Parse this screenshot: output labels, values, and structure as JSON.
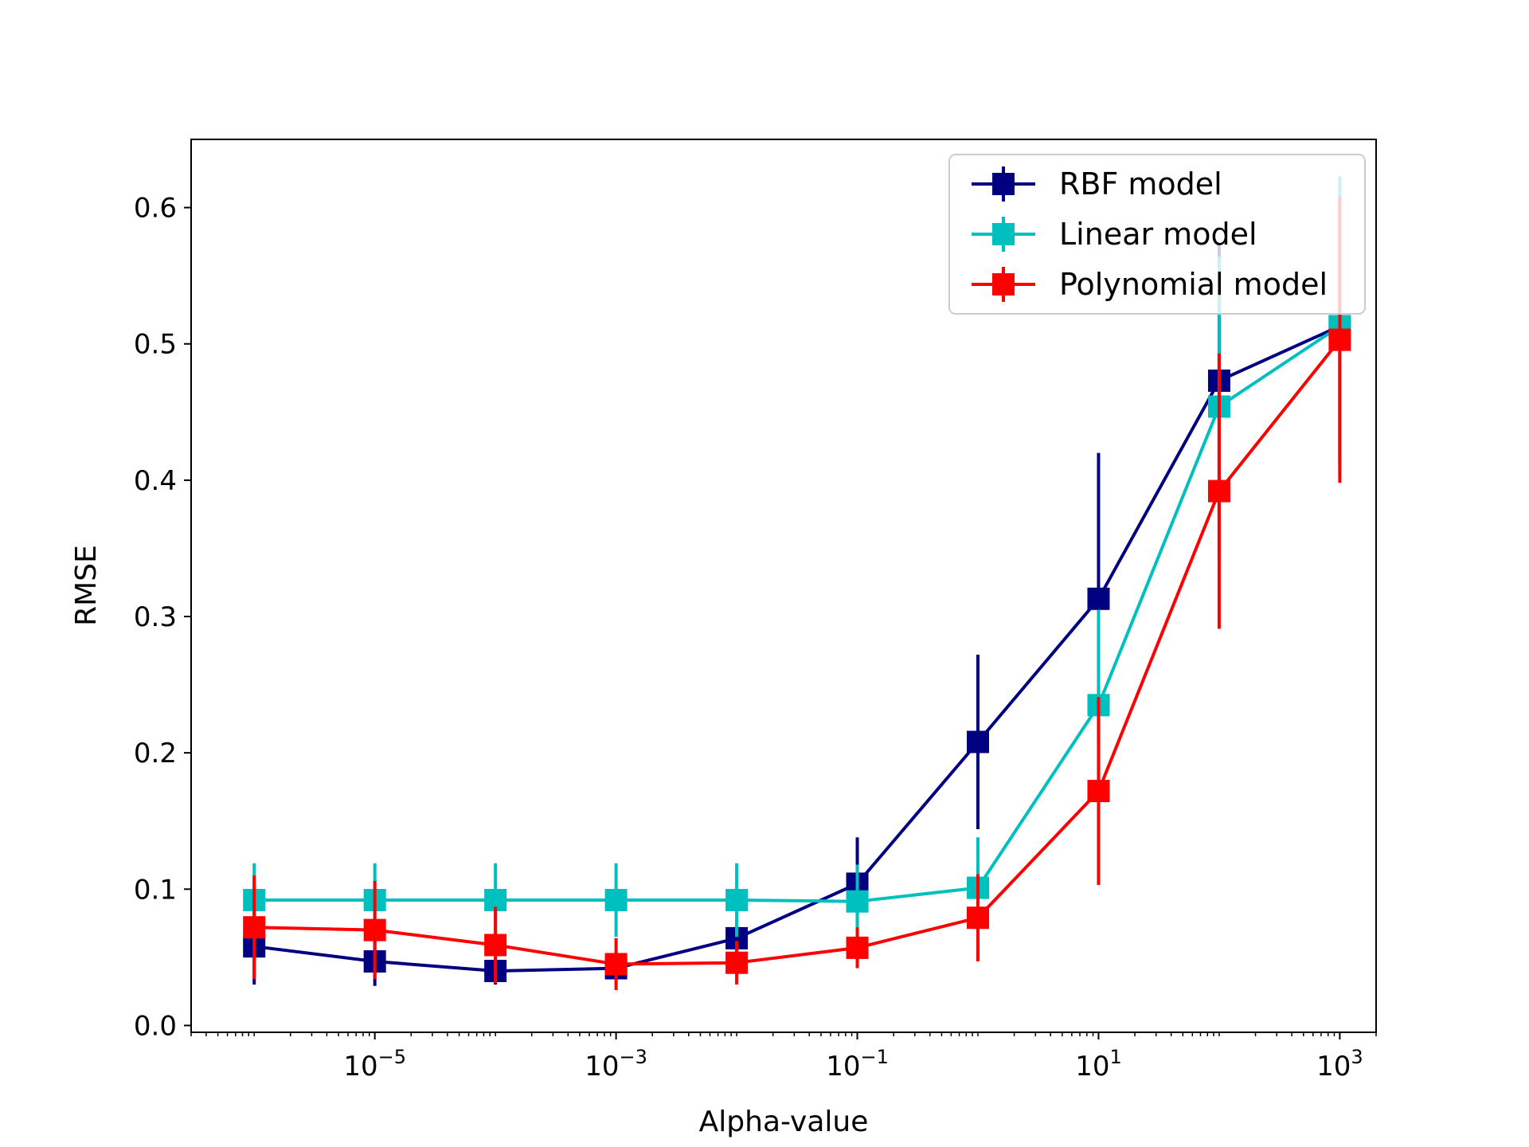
{
  "chart_data": {
    "type": "line",
    "title": "",
    "xlabel": "Alpha-value",
    "ylabel": "RMSE",
    "xscale": "log",
    "xlim": [
      3e-07,
      2000
    ],
    "ylim": [
      -0.005,
      0.65
    ],
    "grid": false,
    "legend_position": "top-right",
    "x": [
      1e-06,
      1e-05,
      0.0001,
      0.001,
      0.01,
      0.1,
      1,
      10,
      100,
      1000
    ],
    "x_tick_values": [
      1e-05,
      0.001,
      0.1,
      10,
      1000
    ],
    "x_ticks": [
      {
        "base": "10",
        "exp": "−5"
      },
      {
        "base": "10",
        "exp": "−3"
      },
      {
        "base": "10",
        "exp": "−1"
      },
      {
        "base": "10",
        "exp": "1"
      },
      {
        "base": "10",
        "exp": "3"
      }
    ],
    "y_tick_values": [
      0.0,
      0.1,
      0.2,
      0.3,
      0.4,
      0.5,
      0.6
    ],
    "y_ticks": [
      "0.0",
      "0.1",
      "0.2",
      "0.3",
      "0.4",
      "0.5",
      "0.6"
    ],
    "series": [
      {
        "name": "RBF model",
        "color": "#000080",
        "values": [
          0.058,
          0.047,
          0.04,
          0.042,
          0.064,
          0.104,
          0.208,
          0.313,
          0.473,
          0.513
        ],
        "errors": [
          0.028,
          0.018,
          0.01,
          0.006,
          0.014,
          0.034,
          0.064,
          0.107,
          0.1,
          0.1
        ]
      },
      {
        "name": "Linear model",
        "color": "#00bfbf",
        "values": [
          0.092,
          0.092,
          0.092,
          0.092,
          0.092,
          0.091,
          0.101,
          0.235,
          0.454,
          0.513
        ],
        "errors": [
          0.027,
          0.027,
          0.027,
          0.027,
          0.027,
          0.027,
          0.037,
          0.07,
          0.11,
          0.11
        ]
      },
      {
        "name": "Polynomial model",
        "color": "#ff0000",
        "values": [
          0.072,
          0.07,
          0.059,
          0.045,
          0.046,
          0.057,
          0.079,
          0.172,
          0.392,
          0.503
        ],
        "errors": [
          0.038,
          0.036,
          0.028,
          0.019,
          0.016,
          0.015,
          0.032,
          0.069,
          0.101,
          0.105
        ]
      }
    ]
  }
}
